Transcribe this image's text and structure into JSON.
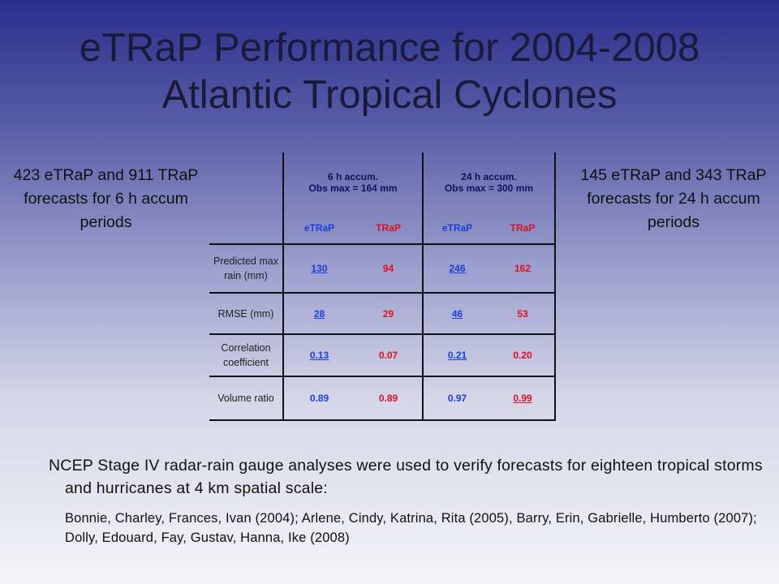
{
  "title": {
    "line1": "eTRaP Performance for 2004-2008",
    "line2": "Atlantic Tropical Cyclones"
  },
  "left_note": "423 eTRaP and 911 TRaP forecasts for 6 h accum periods",
  "right_note": "145 eTRaP and 343 TRaP forecasts for 24 h accum periods",
  "table": {
    "group_headers": [
      {
        "line1": "6 h accum.",
        "line2": "Obs max = 164 mm"
      },
      {
        "line1": "24 h accum.",
        "line2": "Obs max = 300 mm"
      }
    ],
    "sub_headers": [
      "eTRaP",
      "TRaP",
      "eTRaP",
      "TRaP"
    ],
    "rows": [
      {
        "label": "Predicted max rain (mm)",
        "values": [
          "130",
          "94",
          "246",
          "162"
        ]
      },
      {
        "label": "RMSE (mm)",
        "values": [
          "28",
          "29",
          "46",
          "53"
        ]
      },
      {
        "label": "Correlation coefficient",
        "values": [
          "0.13",
          "0.07",
          "0.21",
          "0.20"
        ]
      },
      {
        "label": "Volume ratio",
        "values": [
          "0.89",
          "0.89",
          "0.97",
          "0.99"
        ]
      }
    ]
  },
  "body": {
    "para1": "NCEP Stage IV radar-rain gauge analyses were used to verify forecasts for eighteen tropical storms and hurricanes at 4 km spatial scale:",
    "para2": "Bonnie, Charley, Frances, Ivan (2004); Arlene, Cindy, Katrina, Rita (2005), Barry, Erin, Gabrielle, Humberto (2007); Dolly, Edouard, Fay, Gustav, Hanna, Ike (2008)"
  },
  "colors": {
    "etrap_value": "#1a3fe0",
    "trap_value": "#e01020",
    "background_top": "#2b2e8c",
    "background_bottom": "#f4f4f8"
  }
}
